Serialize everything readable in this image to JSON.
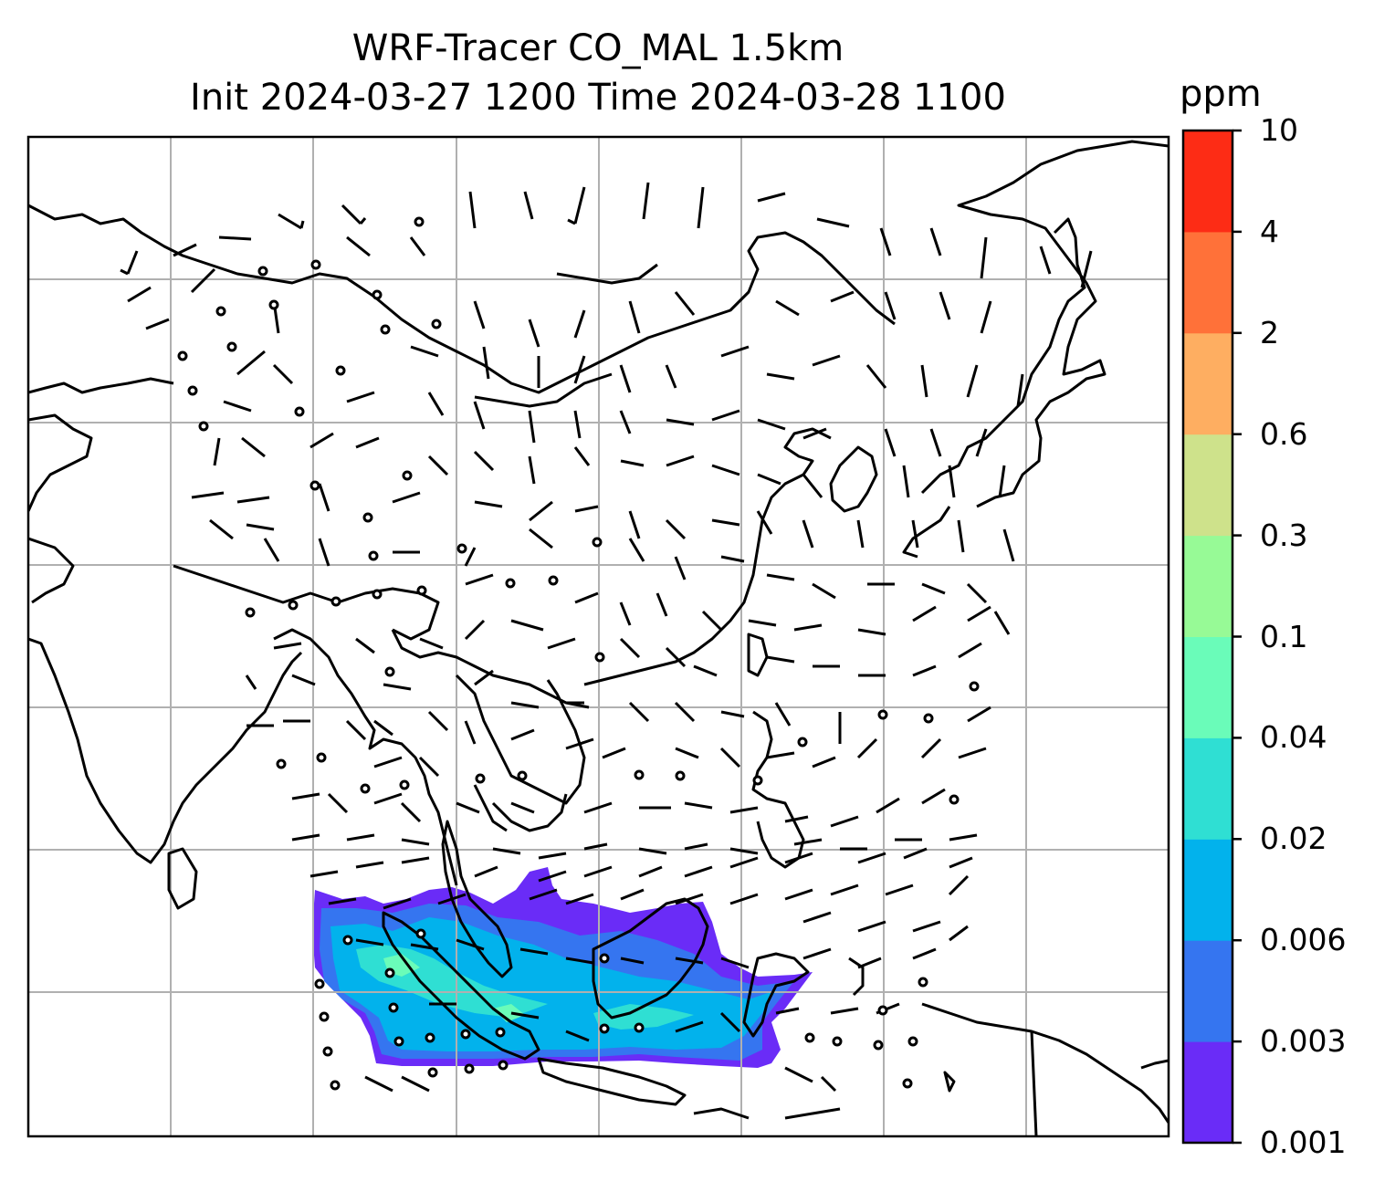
{
  "title": {
    "line1": "WRF-Tracer CO_MAL 1.5km",
    "line2": "Init 2024-03-27 1200 Time 2024-03-28 1100"
  },
  "colorbar": {
    "unit": "ppm",
    "levels": [
      "0.001",
      "0.003",
      "0.006",
      "0.02",
      "0.04",
      "0.1",
      "0.3",
      "0.6",
      "2",
      "4",
      "10"
    ],
    "colors": [
      "#6a2cf7",
      "#3575f0",
      "#02b2ec",
      "#2fdfd3",
      "#6afcb9",
      "#97fa96",
      "#cee28b",
      "#feae61",
      "#ff7139",
      "#fd2c15"
    ]
  },
  "map": {
    "field": "CO_MAL tracer concentration with wind barbs",
    "grid": true
  }
}
